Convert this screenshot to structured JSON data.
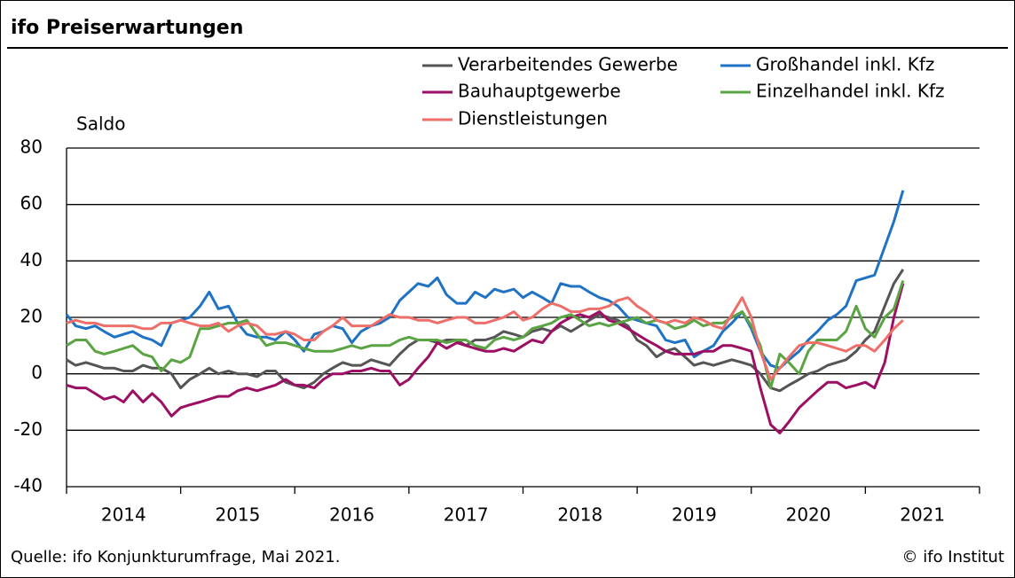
{
  "chart_data": {
    "type": "line",
    "title": "ifo Preiserwartungen",
    "y_label": "Saldo",
    "source": "Quelle: ifo Konjunkturumfrage, Mai 2021.",
    "copyright": "© ifo Institut",
    "xlim": [
      2014,
      2022
    ],
    "xticks": [
      {
        "value": 2014.5,
        "label": "2014"
      },
      {
        "value": 2015.5,
        "label": "2015"
      },
      {
        "value": 2016.5,
        "label": "2016"
      },
      {
        "value": 2017.5,
        "label": "2017"
      },
      {
        "value": 2018.5,
        "label": "2018"
      },
      {
        "value": 2019.5,
        "label": "2019"
      },
      {
        "value": 2020.5,
        "label": "2020"
      },
      {
        "value": 2021.5,
        "label": "2021"
      }
    ],
    "xtick_marks": [
      2014,
      2015,
      2016,
      2017,
      2018,
      2019,
      2020,
      2021,
      2022
    ],
    "ylim": [
      -40,
      80
    ],
    "yticks": [
      -40,
      -20,
      0,
      20,
      40,
      60,
      80
    ],
    "grid": true,
    "x": [
      2014.0,
      2014.08,
      2014.17,
      2014.25,
      2014.33,
      2014.42,
      2014.5,
      2014.58,
      2014.67,
      2014.75,
      2014.83,
      2014.92,
      2015.0,
      2015.08,
      2015.17,
      2015.25,
      2015.33,
      2015.42,
      2015.5,
      2015.58,
      2015.67,
      2015.75,
      2015.83,
      2015.92,
      2016.0,
      2016.08,
      2016.17,
      2016.25,
      2016.33,
      2016.42,
      2016.5,
      2016.58,
      2016.67,
      2016.75,
      2016.83,
      2016.92,
      2017.0,
      2017.08,
      2017.17,
      2017.25,
      2017.33,
      2017.42,
      2017.5,
      2017.58,
      2017.67,
      2017.75,
      2017.83,
      2017.92,
      2018.0,
      2018.08,
      2018.17,
      2018.25,
      2018.33,
      2018.42,
      2018.5,
      2018.58,
      2018.67,
      2018.75,
      2018.83,
      2018.92,
      2019.0,
      2019.08,
      2019.17,
      2019.25,
      2019.33,
      2019.42,
      2019.5,
      2019.58,
      2019.67,
      2019.75,
      2019.83,
      2019.92,
      2020.0,
      2020.08,
      2020.17,
      2020.25,
      2020.33,
      2020.42,
      2020.5,
      2020.58,
      2020.67,
      2020.75,
      2020.83,
      2020.92,
      2021.0,
      2021.08,
      2021.17,
      2021.25,
      2021.33
    ],
    "series": [
      {
        "name": "Verarbeitendes Gewerbe",
        "color": "#555555",
        "values": [
          5,
          3,
          4,
          3,
          2,
          2,
          1,
          1,
          3,
          2,
          2,
          0,
          -5,
          -2,
          0,
          2,
          0,
          1,
          0,
          0,
          -1,
          1,
          1,
          -3,
          -4,
          -5,
          -3,
          0,
          2,
          4,
          3,
          3,
          5,
          4,
          3,
          7,
          10,
          12,
          12,
          11,
          12,
          12,
          10,
          12,
          12,
          13,
          15,
          14,
          13,
          15,
          16,
          15,
          17,
          15,
          17,
          19,
          21,
          20,
          19,
          17,
          12,
          10,
          6,
          8,
          9,
          6,
          3,
          4,
          3,
          4,
          5,
          4,
          3,
          0,
          -5,
          -6,
          -4,
          -2,
          0,
          1,
          3,
          4,
          5,
          8,
          12,
          15,
          24,
          32,
          37
        ]
      },
      {
        "name": "Großhandel inkl. Kfz",
        "color": "#1f72c4",
        "values": [
          21,
          17,
          16,
          17,
          15,
          13,
          14,
          15,
          13,
          12,
          10,
          18,
          19,
          20,
          24,
          29,
          23,
          24,
          18,
          14,
          13,
          13,
          12,
          15,
          12,
          8,
          14,
          15,
          17,
          16,
          11,
          15,
          17,
          18,
          20,
          26,
          29,
          32,
          31,
          34,
          28,
          25,
          25,
          29,
          27,
          30,
          29,
          30,
          27,
          29,
          27,
          25,
          32,
          31,
          31,
          29,
          27,
          26,
          24,
          20,
          19,
          18,
          17,
          12,
          11,
          12,
          6,
          8,
          10,
          15,
          18,
          22,
          16,
          8,
          3,
          2,
          5,
          8,
          12,
          15,
          19,
          21,
          24,
          33,
          34,
          35,
          45,
          54,
          65
        ]
      },
      {
        "name": "Bauhauptgewerbe",
        "color": "#9c0f63",
        "values": [
          -4,
          -5,
          -5,
          -7,
          -9,
          -8,
          -10,
          -6,
          -10,
          -7,
          -10,
          -15,
          -12,
          -11,
          -10,
          -9,
          -8,
          -8,
          -6,
          -5,
          -6,
          -5,
          -4,
          -2,
          -4,
          -4,
          -5,
          -2,
          0,
          0,
          1,
          1,
          2,
          1,
          1,
          -4,
          -2,
          2,
          6,
          11,
          9,
          11,
          10,
          9,
          8,
          8,
          9,
          8,
          10,
          12,
          11,
          15,
          18,
          20,
          21,
          20,
          22,
          19,
          18,
          16,
          14,
          12,
          10,
          8,
          7,
          7,
          7,
          8,
          8,
          10,
          10,
          9,
          8,
          -5,
          -18,
          -21,
          -17,
          -12,
          -9,
          -6,
          -3,
          -3,
          -5,
          -4,
          -3,
          -5,
          4,
          20,
          32
        ]
      },
      {
        "name": "Einzelhandel inkl. Kfz",
        "color": "#5aa443",
        "values": [
          10,
          12,
          12,
          8,
          7,
          8,
          9,
          10,
          7,
          6,
          1,
          5,
          4,
          6,
          16,
          16,
          17,
          18,
          18,
          19,
          14,
          10,
          11,
          11,
          10,
          9,
          8,
          8,
          8,
          9,
          10,
          9,
          10,
          10,
          10,
          12,
          13,
          12,
          12,
          12,
          11,
          12,
          12,
          10,
          9,
          12,
          13,
          12,
          13,
          16,
          17,
          18,
          20,
          21,
          19,
          17,
          18,
          17,
          18,
          19,
          20,
          18,
          19,
          18,
          16,
          17,
          19,
          17,
          18,
          18,
          20,
          22,
          17,
          10,
          -5,
          7,
          4,
          0,
          8,
          12,
          12,
          12,
          15,
          24,
          16,
          13,
          20,
          23,
          33
        ]
      },
      {
        "name": "Dienstleistungen",
        "color": "#ee6f6a",
        "values": [
          18,
          19,
          18,
          18,
          17,
          17,
          17,
          17,
          16,
          16,
          18,
          18,
          19,
          18,
          17,
          17,
          18,
          15,
          17,
          18,
          17,
          14,
          14,
          15,
          14,
          12,
          12,
          15,
          17,
          20,
          17,
          17,
          17,
          19,
          21,
          20,
          20,
          19,
          19,
          18,
          19,
          20,
          20,
          18,
          18,
          19,
          20,
          22,
          19,
          20,
          23,
          25,
          24,
          22,
          22,
          23,
          23,
          24,
          26,
          27,
          24,
          22,
          19,
          18,
          19,
          18,
          20,
          19,
          17,
          16,
          21,
          27,
          20,
          8,
          -2,
          2,
          6,
          10,
          11,
          11,
          10,
          9,
          8,
          10,
          10,
          8,
          12,
          16,
          19
        ]
      }
    ]
  }
}
